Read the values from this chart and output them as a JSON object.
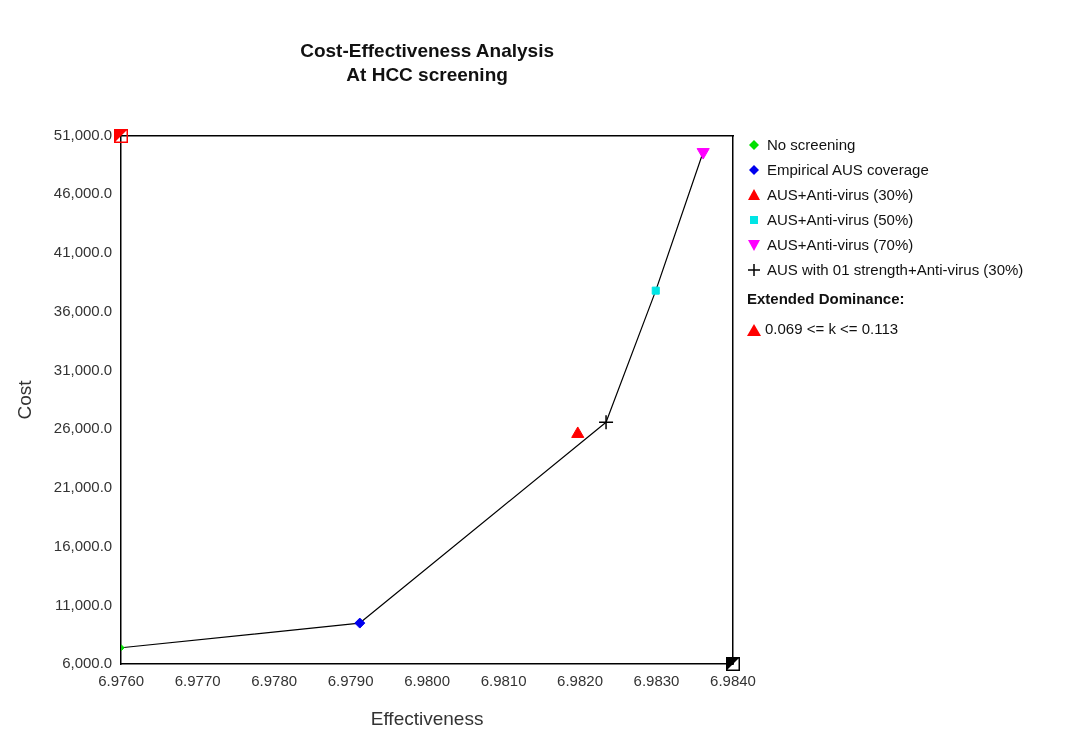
{
  "chart_data": {
    "type": "scatter",
    "title": "Cost-Effectiveness Analysis",
    "subtitle": "At HCC screening",
    "xlabel": "Effectiveness",
    "ylabel": "Cost",
    "series": [
      {
        "name": "No screening",
        "color": "#00e000",
        "marker": "diamond",
        "x": [
          6.976
        ],
        "values": [
          7400
        ]
      },
      {
        "name": "Empirical AUS coverage",
        "color": "#0000ee",
        "marker": "diamond",
        "x": [
          6.97912
        ],
        "values": [
          9500
        ]
      },
      {
        "name": "AUS+Anti-virus (30%)",
        "color": "#ff0000",
        "marker": "triangle",
        "x": [
          6.98197
        ],
        "values": [
          25600
        ]
      },
      {
        "name": "AUS+Anti-virus (50%)",
        "color": "#00e5e5",
        "marker": "square",
        "x": [
          6.98299
        ],
        "values": [
          37800
        ]
      },
      {
        "name": "AUS+Anti-virus (70%)",
        "color": "#ff00ff",
        "marker": "triangle_down",
        "x": [
          6.98361
        ],
        "values": [
          49600
        ]
      },
      {
        "name": "AUS with 01 strength+Anti-virus (30%)",
        "color": "#000000",
        "marker": "cross",
        "x": [
          6.98234
        ],
        "values": [
          26600
        ]
      },
      {
        "type": "line",
        "color": "#000000",
        "marker": "none",
        "x": [
          6.976,
          6.97912,
          6.98234,
          6.98299,
          6.98361
        ],
        "values": [
          7400,
          9500,
          26600,
          37800,
          49600
        ]
      }
    ],
    "xlim": [
      6.976,
      6.984
    ],
    "xticks": [
      {
        "value": 6.976,
        "label": "6.9760"
      },
      {
        "value": 6.977,
        "label": "6.9770"
      },
      {
        "value": 6.978,
        "label": "6.9780"
      },
      {
        "value": 6.979,
        "label": "6.9790"
      },
      {
        "value": 6.98,
        "label": "6.9800"
      },
      {
        "value": 6.981,
        "label": "6.9810"
      },
      {
        "value": 6.982,
        "label": "6.9820"
      },
      {
        "value": 6.983,
        "label": "6.9830"
      },
      {
        "value": 6.984,
        "label": "6.9840"
      }
    ],
    "ylim": [
      6000,
      51000
    ],
    "yticks": [
      {
        "value": 6000,
        "label": "6,000.0"
      },
      {
        "value": 11000,
        "label": "11,000.0"
      },
      {
        "value": 16000,
        "label": "16,000.0"
      },
      {
        "value": 21000,
        "label": "21,000.0"
      },
      {
        "value": 26000,
        "label": "26,000.0"
      },
      {
        "value": 31000,
        "label": "31,000.0"
      },
      {
        "value": 36000,
        "label": "36,000.0"
      },
      {
        "value": 41000,
        "label": "41,000.0"
      },
      {
        "value": 46000,
        "label": "46,000.0"
      },
      {
        "value": 51000,
        "label": "51,000.0"
      }
    ],
    "grid": false,
    "legend": "right",
    "annotations": [
      "Extended Dominance:",
      "0.069 <= k <= 0.113"
    ]
  }
}
